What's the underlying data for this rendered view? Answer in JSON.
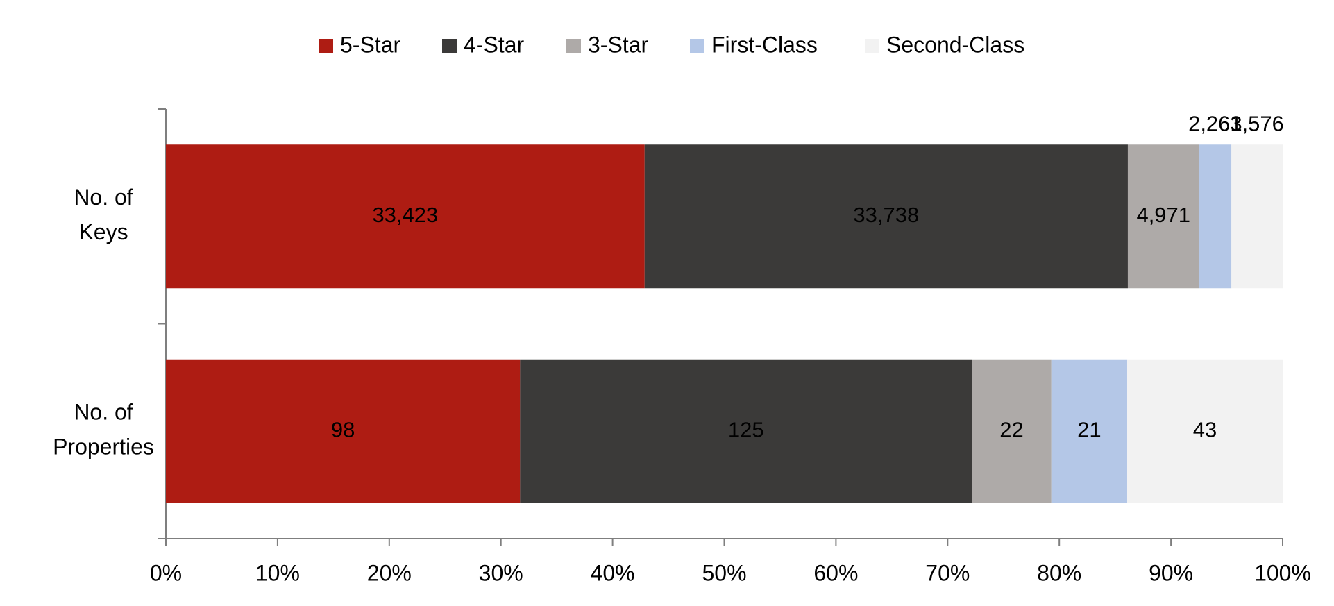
{
  "chart_data": {
    "type": "stacked_bar_percent",
    "orientation": "horizontal",
    "categories": [
      "No. of Keys",
      "No. of Properties"
    ],
    "series": [
      {
        "name": "5-Star",
        "color": "#ae1c13",
        "label_color": "#ffffff",
        "values": [
          33423,
          98
        ],
        "value_labels": [
          "33,423",
          "98"
        ]
      },
      {
        "name": "4-Star",
        "color": "#3b3a39",
        "label_color": "#ffffff",
        "values": [
          33738,
          125
        ],
        "value_labels": [
          "33,738",
          "125"
        ]
      },
      {
        "name": "3-Star",
        "color": "#aeaaa8",
        "label_color": "#000000",
        "values": [
          4971,
          22
        ],
        "value_labels": [
          "4,971",
          "22"
        ]
      },
      {
        "name": "First-Class",
        "color": "#b4c7e7",
        "label_color": "#000000",
        "values": [
          2261,
          21
        ],
        "value_labels": [
          "2,261",
          "21"
        ]
      },
      {
        "name": "Second-Class",
        "color": "#f2f2f2",
        "label_color": "#000000",
        "values": [
          3576,
          43
        ],
        "value_labels": [
          "3,576",
          "43"
        ]
      }
    ],
    "xlim": [
      0,
      100
    ],
    "xticks": [
      {
        "value": 0,
        "label": "0%"
      },
      {
        "value": 10,
        "label": "10%"
      },
      {
        "value": 20,
        "label": "20%"
      },
      {
        "value": 30,
        "label": "30%"
      },
      {
        "value": 40,
        "label": "40%"
      },
      {
        "value": 50,
        "label": "50%"
      },
      {
        "value": 60,
        "label": "60%"
      },
      {
        "value": 70,
        "label": "70%"
      },
      {
        "value": 80,
        "label": "80%"
      },
      {
        "value": 90,
        "label": "90%"
      },
      {
        "value": 100,
        "label": "100%"
      }
    ],
    "legend": "top"
  }
}
